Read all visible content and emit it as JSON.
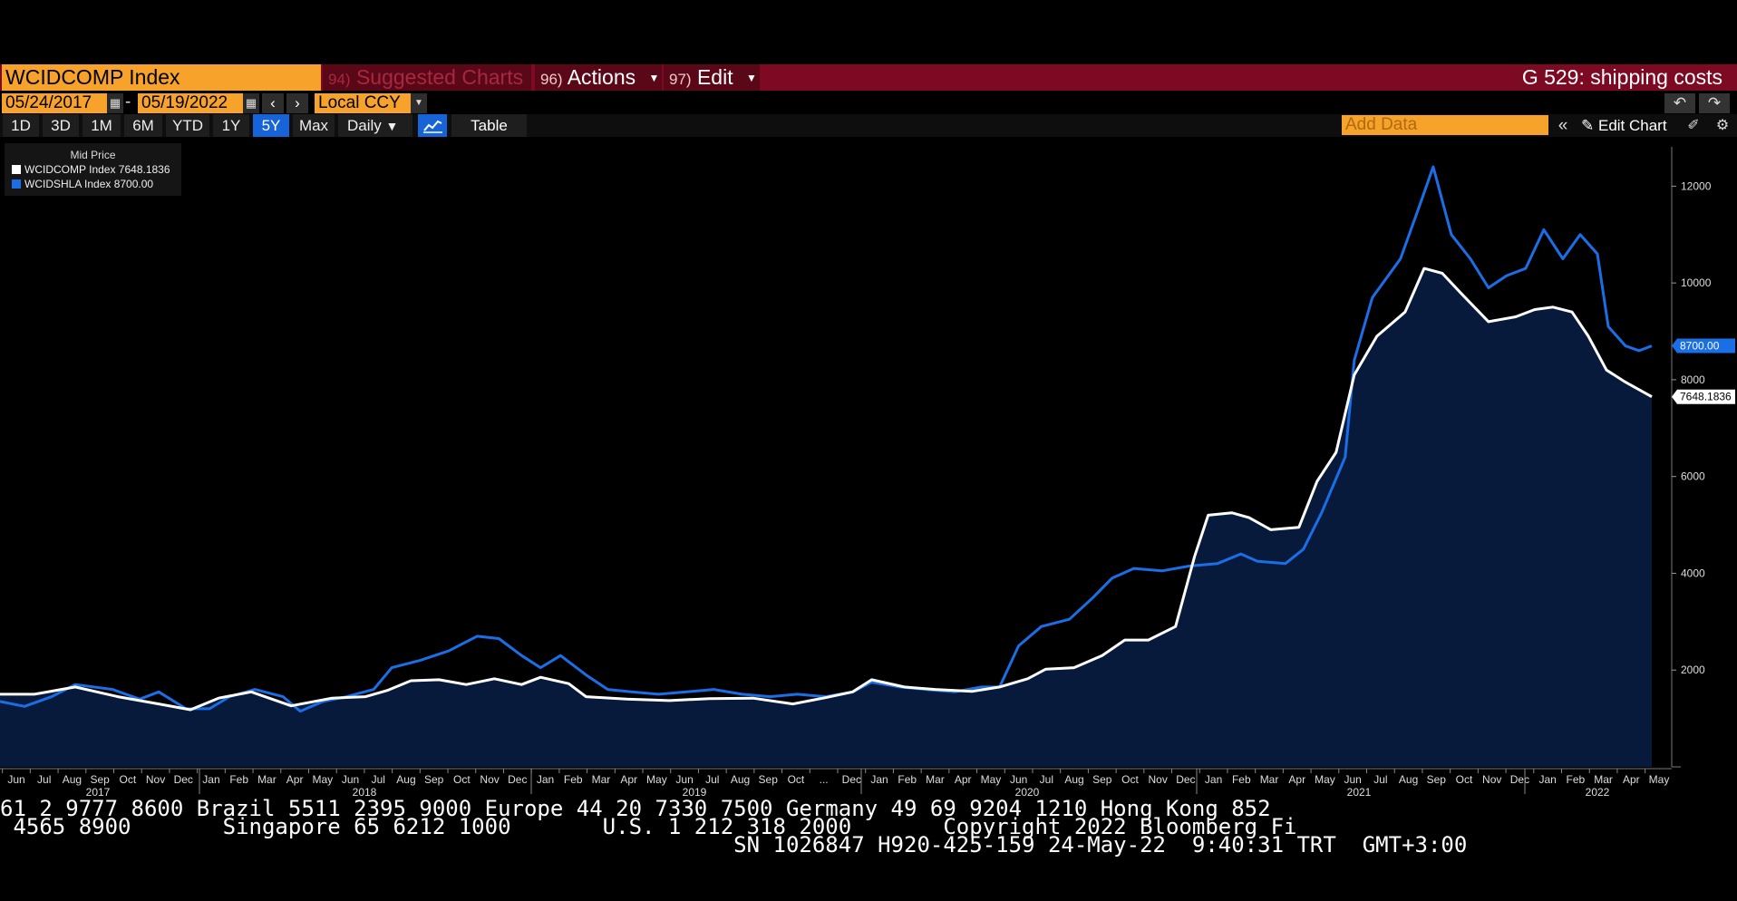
{
  "header": {
    "ticker": "WCIDCOMP Index",
    "suggested": {
      "num": "94)",
      "label": "Suggested Charts"
    },
    "actions": {
      "num": "96)",
      "label": "Actions"
    },
    "edit": {
      "num": "97)",
      "label": "Edit"
    },
    "title": "G 529: shipping costs"
  },
  "dates": {
    "start": "05/24/2017",
    "end": "05/19/2022",
    "currency": "Local CCY"
  },
  "ranges": [
    "1D",
    "3D",
    "1M",
    "6M",
    "YTD",
    "1Y",
    "5Y",
    "Max"
  ],
  "active_range": "5Y",
  "frequency": "Daily",
  "view": {
    "table_label": "Table",
    "add_data_placeholder": "Add Data",
    "edit_chart_label": "Edit Chart"
  },
  "icons": {
    "calendar": "calendar-icon",
    "undo": "undo-icon",
    "redo": "redo-icon",
    "line": "line-chart-icon",
    "settings": "gear-icon"
  },
  "legend": {
    "title": "Mid Price",
    "items": [
      {
        "label": "WCIDCOMP Index 7648.1836",
        "color": "#ffffff"
      },
      {
        "label": "WCIDSHLA Index  8700.00",
        "color": "#1a6ee6"
      }
    ]
  },
  "chart_data": {
    "type": "line",
    "x_start": "2017-05-24",
    "x_end": "2022-05-19",
    "ylim": [
      0,
      13000
    ],
    "yticks": [
      2000,
      4000,
      6000,
      8000,
      10000,
      12000
    ],
    "month_labels": [
      "Jun",
      "Jul",
      "Aug",
      "Sep",
      "Oct",
      "Nov",
      "Dec",
      "Jan",
      "Feb",
      "Mar",
      "Apr",
      "May",
      "Jun",
      "Jul",
      "Aug",
      "Sep",
      "Oct",
      "Nov",
      "Dec",
      "Jan",
      "Feb",
      "Mar",
      "Apr",
      "May",
      "Jun",
      "Jul",
      "Aug",
      "Sep",
      "Oct",
      "...",
      "Dec",
      "Jan",
      "Feb",
      "Mar",
      "Apr",
      "May",
      "Jun",
      "Jul",
      "Aug",
      "Sep",
      "Oct",
      "Nov",
      "Dec",
      "Jan",
      "Feb",
      "Mar",
      "Apr",
      "May",
      "Jun",
      "Jul",
      "Aug",
      "Sep",
      "Oct",
      "Nov",
      "Dec",
      "Jan",
      "Feb",
      "Mar",
      "Apr",
      "May"
    ],
    "year_labels": [
      "2017",
      "2018",
      "2019",
      "2020",
      "2021",
      "2022"
    ],
    "series": [
      {
        "name": "WCIDCOMP Index",
        "color": "#ffffff",
        "last_label": "7648.1836",
        "points": [
          [
            "2017-05-24",
            1500
          ],
          [
            "2017-07-01",
            1500
          ],
          [
            "2017-08-15",
            1650
          ],
          [
            "2017-10-01",
            1450
          ],
          [
            "2017-11-15",
            1300
          ],
          [
            "2017-12-20",
            1180
          ],
          [
            "2018-01-20",
            1420
          ],
          [
            "2018-02-25",
            1550
          ],
          [
            "2018-04-10",
            1260
          ],
          [
            "2018-05-25",
            1420
          ],
          [
            "2018-07-01",
            1450
          ],
          [
            "2018-07-25",
            1580
          ],
          [
            "2018-08-20",
            1780
          ],
          [
            "2018-09-20",
            1800
          ],
          [
            "2018-10-20",
            1700
          ],
          [
            "2018-11-20",
            1820
          ],
          [
            "2018-12-20",
            1700
          ],
          [
            "2019-01-10",
            1850
          ],
          [
            "2019-02-10",
            1720
          ],
          [
            "2019-03-01",
            1450
          ],
          [
            "2019-04-15",
            1400
          ],
          [
            "2019-06-01",
            1370
          ],
          [
            "2019-07-15",
            1410
          ],
          [
            "2019-09-01",
            1420
          ],
          [
            "2019-10-15",
            1300
          ],
          [
            "2019-11-20",
            1430
          ],
          [
            "2019-12-20",
            1550
          ],
          [
            "2020-01-10",
            1800
          ],
          [
            "2020-02-15",
            1650
          ],
          [
            "2020-03-20",
            1600
          ],
          [
            "2020-04-30",
            1560
          ],
          [
            "2020-05-30",
            1650
          ],
          [
            "2020-06-30",
            1820
          ],
          [
            "2020-07-20",
            2020
          ],
          [
            "2020-08-20",
            2050
          ],
          [
            "2020-09-20",
            2300
          ],
          [
            "2020-10-15",
            2620
          ],
          [
            "2020-11-10",
            2620
          ],
          [
            "2020-12-10",
            2900
          ],
          [
            "2020-12-31",
            4350
          ],
          [
            "2021-01-15",
            5200
          ],
          [
            "2021-02-10",
            5250
          ],
          [
            "2021-03-01",
            5150
          ],
          [
            "2021-03-25",
            4900
          ],
          [
            "2021-04-25",
            4950
          ],
          [
            "2021-05-15",
            5900
          ],
          [
            "2021-06-05",
            6500
          ],
          [
            "2021-06-25",
            8100
          ],
          [
            "2021-07-20",
            8900
          ],
          [
            "2021-08-20",
            9400
          ],
          [
            "2021-09-10",
            10300
          ],
          [
            "2021-09-30",
            10200
          ],
          [
            "2021-10-20",
            9800
          ],
          [
            "2021-11-20",
            9200
          ],
          [
            "2021-12-20",
            9300
          ],
          [
            "2022-01-10",
            9450
          ],
          [
            "2022-01-30",
            9500
          ],
          [
            "2022-02-20",
            9400
          ],
          [
            "2022-03-10",
            8900
          ],
          [
            "2022-03-30",
            8200
          ],
          [
            "2022-04-20",
            7950
          ],
          [
            "2022-05-19",
            7648
          ]
        ]
      },
      {
        "name": "WCIDSHLA Index",
        "color": "#1a6ee6",
        "last_label": "8700.00",
        "points": [
          [
            "2017-05-24",
            1350
          ],
          [
            "2017-06-20",
            1250
          ],
          [
            "2017-07-20",
            1450
          ],
          [
            "2017-08-15",
            1700
          ],
          [
            "2017-09-25",
            1600
          ],
          [
            "2017-10-25",
            1400
          ],
          [
            "2017-11-15",
            1550
          ],
          [
            "2017-12-15",
            1200
          ],
          [
            "2018-01-10",
            1200
          ],
          [
            "2018-02-01",
            1450
          ],
          [
            "2018-03-01",
            1600
          ],
          [
            "2018-04-01",
            1450
          ],
          [
            "2018-04-20",
            1150
          ],
          [
            "2018-05-15",
            1350
          ],
          [
            "2018-06-10",
            1450
          ],
          [
            "2018-07-10",
            1600
          ],
          [
            "2018-07-30",
            2050
          ],
          [
            "2018-08-30",
            2200
          ],
          [
            "2018-10-01",
            2400
          ],
          [
            "2018-11-01",
            2700
          ],
          [
            "2018-11-25",
            2650
          ],
          [
            "2018-12-20",
            2300
          ],
          [
            "2019-01-10",
            2050
          ],
          [
            "2019-02-01",
            2300
          ],
          [
            "2019-03-01",
            1900
          ],
          [
            "2019-03-25",
            1600
          ],
          [
            "2019-04-20",
            1550
          ],
          [
            "2019-05-20",
            1500
          ],
          [
            "2019-06-20",
            1550
          ],
          [
            "2019-07-20",
            1600
          ],
          [
            "2019-08-20",
            1500
          ],
          [
            "2019-09-20",
            1450
          ],
          [
            "2019-10-20",
            1500
          ],
          [
            "2019-11-20",
            1450
          ],
          [
            "2019-12-20",
            1550
          ],
          [
            "2020-01-10",
            1750
          ],
          [
            "2020-02-10",
            1650
          ],
          [
            "2020-03-10",
            1600
          ],
          [
            "2020-04-10",
            1550
          ],
          [
            "2020-05-10",
            1650
          ],
          [
            "2020-05-30",
            1650
          ],
          [
            "2020-06-20",
            2500
          ],
          [
            "2020-07-15",
            2900
          ],
          [
            "2020-08-15",
            3050
          ],
          [
            "2020-09-10",
            3500
          ],
          [
            "2020-10-01",
            3900
          ],
          [
            "2020-10-25",
            4100
          ],
          [
            "2020-11-25",
            4050
          ],
          [
            "2020-12-25",
            4150
          ],
          [
            "2021-01-25",
            4200
          ],
          [
            "2021-02-20",
            4400
          ],
          [
            "2021-03-10",
            4250
          ],
          [
            "2021-04-10",
            4200
          ],
          [
            "2021-04-30",
            4500
          ],
          [
            "2021-05-20",
            5250
          ],
          [
            "2021-06-15",
            6400
          ],
          [
            "2021-06-25",
            8400
          ],
          [
            "2021-07-15",
            9700
          ],
          [
            "2021-08-15",
            10500
          ],
          [
            "2021-09-05",
            11600
          ],
          [
            "2021-09-20",
            12400
          ],
          [
            "2021-10-10",
            11000
          ],
          [
            "2021-10-31",
            10500
          ],
          [
            "2021-11-20",
            9900
          ],
          [
            "2021-12-10",
            10150
          ],
          [
            "2021-12-31",
            10300
          ],
          [
            "2022-01-20",
            11100
          ],
          [
            "2022-02-10",
            10500
          ],
          [
            "2022-03-01",
            11000
          ],
          [
            "2022-03-20",
            10600
          ],
          [
            "2022-04-01",
            9100
          ],
          [
            "2022-04-20",
            8700
          ],
          [
            "2022-05-05",
            8600
          ],
          [
            "2022-05-19",
            8700
          ]
        ]
      }
    ]
  },
  "tape": {
    "line1": "61 2 9777 8600 Brazil 5511 2395 9000 Europe 44 20 7330 7500 Germany 49 69 9204 1210 Hong Kong 852",
    "line2": " 4565 8900       Singapore 65 6212 1000       U.S. 1 212 318 2000       Copyright 2022 Bloomberg Fi",
    "line3": "                                                        SN 1026847 H920-425-159 24-May-22  9:40:31 TRT  GMT+3:00"
  }
}
